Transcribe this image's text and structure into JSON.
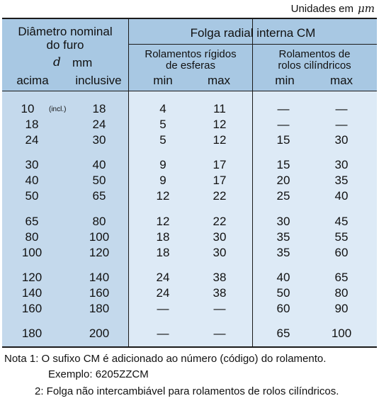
{
  "units": {
    "label": "Unidades em",
    "unit": "μm"
  },
  "header": {
    "diameter_line1": "Diâmetro nominal",
    "diameter_line2": "do furo",
    "d_symbol": "d",
    "mm": "mm",
    "acima": "acima",
    "inclusive": "inclusive",
    "clearance_title": "Folga radial interna CM",
    "deep_groove_line1": "Rolamentos rígidos",
    "deep_groove_line2": "de esferas",
    "cyl_line1": "Rolamentos de",
    "cyl_line2": "rolos cilíndricos",
    "min": "min",
    "max": "max"
  },
  "rows": [
    {
      "over": "10",
      "over_note": "(incl.)",
      "incl": "18",
      "ball_min": "4",
      "ball_max": "11",
      "cyl_min": "—",
      "cyl_max": "—"
    },
    {
      "over": "18",
      "over_note": "",
      "incl": "24",
      "ball_min": "5",
      "ball_max": "12",
      "cyl_min": "—",
      "cyl_max": "—"
    },
    {
      "over": "24",
      "over_note": "",
      "incl": "30",
      "ball_min": "5",
      "ball_max": "12",
      "cyl_min": "15",
      "cyl_max": "30"
    },
    {
      "over": "30",
      "over_note": "",
      "incl": "40",
      "ball_min": "9",
      "ball_max": "17",
      "cyl_min": "15",
      "cyl_max": "30"
    },
    {
      "over": "40",
      "over_note": "",
      "incl": "50",
      "ball_min": "9",
      "ball_max": "17",
      "cyl_min": "20",
      "cyl_max": "35"
    },
    {
      "over": "50",
      "over_note": "",
      "incl": "65",
      "ball_min": "12",
      "ball_max": "22",
      "cyl_min": "25",
      "cyl_max": "40"
    },
    {
      "over": "65",
      "over_note": "",
      "incl": "80",
      "ball_min": "12",
      "ball_max": "22",
      "cyl_min": "30",
      "cyl_max": "45"
    },
    {
      "over": "80",
      "over_note": "",
      "incl": "100",
      "ball_min": "18",
      "ball_max": "30",
      "cyl_min": "35",
      "cyl_max": "55"
    },
    {
      "over": "100",
      "over_note": "",
      "incl": "120",
      "ball_min": "18",
      "ball_max": "30",
      "cyl_min": "35",
      "cyl_max": "60"
    },
    {
      "over": "120",
      "over_note": "",
      "incl": "140",
      "ball_min": "24",
      "ball_max": "38",
      "cyl_min": "40",
      "cyl_max": "65"
    },
    {
      "over": "140",
      "over_note": "",
      "incl": "160",
      "ball_min": "24",
      "ball_max": "38",
      "cyl_min": "50",
      "cyl_max": "80"
    },
    {
      "over": "160",
      "over_note": "",
      "incl": "180",
      "ball_min": "—",
      "ball_max": "—",
      "cyl_min": "60",
      "cyl_max": "90"
    },
    {
      "over": "180",
      "over_note": "",
      "incl": "200",
      "ball_min": "—",
      "ball_max": "—",
      "cyl_min": "65",
      "cyl_max": "100"
    }
  ],
  "notes": {
    "note1": "Nota 1: O sufixo CM é adicionado ao número (código) do rolamento.",
    "example": "Exemplo: 6205ZZCM",
    "note2": "2: Folga não intercambiável para rolamentos de rolos cilíndricos."
  }
}
